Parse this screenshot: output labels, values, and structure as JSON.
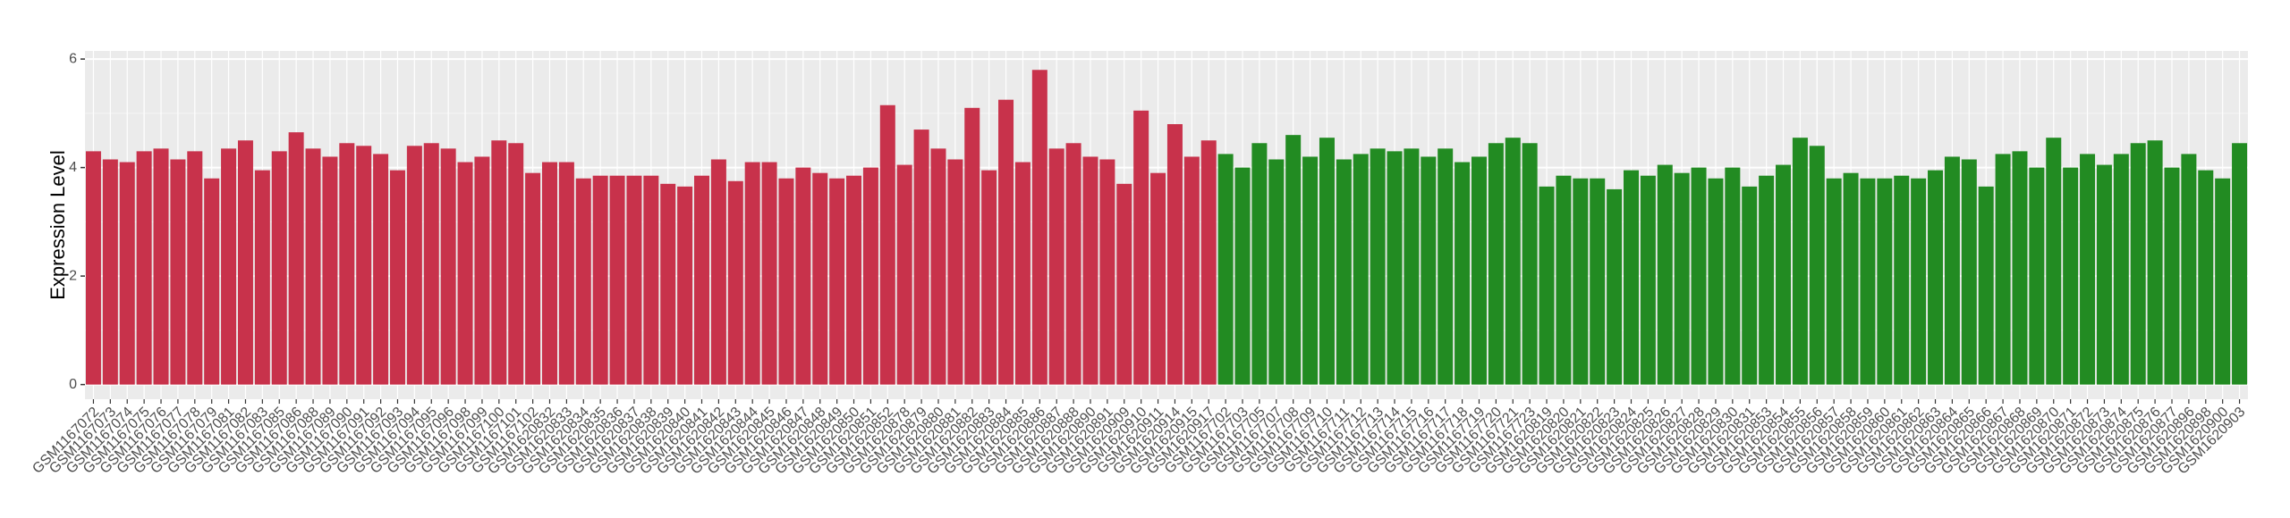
{
  "chart_data": {
    "type": "bar",
    "y_label": "Expression Level",
    "categories": [
      "GSM1167072",
      "GSM1167073",
      "GSM1167074",
      "GSM1167075",
      "GSM1167076",
      "GSM1167077",
      "GSM1167078",
      "GSM1167079",
      "GSM1167081",
      "GSM1167082",
      "GSM1167083",
      "GSM1167085",
      "GSM1167086",
      "GSM1167088",
      "GSM1167089",
      "GSM1167090",
      "GSM1167091",
      "GSM1167092",
      "GSM1167093",
      "GSM1167094",
      "GSM1167095",
      "GSM1167096",
      "GSM1167098",
      "GSM1167099",
      "GSM1167100",
      "GSM1167101",
      "GSM1167102",
      "GSM1620832",
      "GSM1620833",
      "GSM1620834",
      "GSM1620835",
      "GSM1620836",
      "GSM1620837",
      "GSM1620838",
      "GSM1620839",
      "GSM1620840",
      "GSM1620841",
      "GSM1620842",
      "GSM1620843",
      "GSM1620844",
      "GSM1620845",
      "GSM1620846",
      "GSM1620847",
      "GSM1620848",
      "GSM1620849",
      "GSM1620850",
      "GSM1620851",
      "GSM1620852",
      "GSM1620878",
      "GSM1620879",
      "GSM1620880",
      "GSM1620881",
      "GSM1620882",
      "GSM1620883",
      "GSM1620884",
      "GSM1620885",
      "GSM1620886",
      "GSM1620887",
      "GSM1620888",
      "GSM1620890",
      "GSM1620891",
      "GSM1620909",
      "GSM1620910",
      "GSM1620911",
      "GSM1620914",
      "GSM1620915",
      "GSM1620917",
      "GSM1167702",
      "GSM1167703",
      "GSM1167705",
      "GSM1167707",
      "GSM1167708",
      "GSM1167709",
      "GSM1167710",
      "GSM1167711",
      "GSM1167712",
      "GSM1167713",
      "GSM1167714",
      "GSM1167715",
      "GSM1167716",
      "GSM1167717",
      "GSM1167718",
      "GSM1167719",
      "GSM1167720",
      "GSM1167721",
      "GSM1167723",
      "GSM1620819",
      "GSM1620820",
      "GSM1620821",
      "GSM1620822",
      "GSM1620823",
      "GSM1620824",
      "GSM1620825",
      "GSM1620826",
      "GSM1620827",
      "GSM1620828",
      "GSM1620829",
      "GSM1620830",
      "GSM1620831",
      "GSM1620853",
      "GSM1620854",
      "GSM1620855",
      "GSM1620856",
      "GSM1620857",
      "GSM1620858",
      "GSM1620859",
      "GSM1620860",
      "GSM1620861",
      "GSM1620862",
      "GSM1620863",
      "GSM1620864",
      "GSM1620865",
      "GSM1620866",
      "GSM1620867",
      "GSM1620868",
      "GSM1620869",
      "GSM1620870",
      "GSM1620871",
      "GSM1620872",
      "GSM1620873",
      "GSM1620874",
      "GSM1620875",
      "GSM1620876",
      "GSM1620877",
      "GSM1620896",
      "GSM1620898",
      "GSM1620900",
      "GSM1620903"
    ],
    "values": [
      4.3,
      4.15,
      4.1,
      4.3,
      4.35,
      4.15,
      4.3,
      3.8,
      4.35,
      4.5,
      3.95,
      4.3,
      4.65,
      4.35,
      4.2,
      4.45,
      4.4,
      4.25,
      3.95,
      4.4,
      4.45,
      4.35,
      4.1,
      4.2,
      4.5,
      4.45,
      3.9,
      4.1,
      4.1,
      3.8,
      3.85,
      3.85,
      3.85,
      3.85,
      3.7,
      3.65,
      3.85,
      4.15,
      3.75,
      4.1,
      4.1,
      3.8,
      4.0,
      3.9,
      3.8,
      3.85,
      4.0,
      5.15,
      4.05,
      4.7,
      4.35,
      4.15,
      5.1,
      3.95,
      5.25,
      4.1,
      5.8,
      4.35,
      4.45,
      4.2,
      4.15,
      3.7,
      5.05,
      3.9,
      4.8,
      4.2,
      4.5,
      4.25,
      4.0,
      4.45,
      4.15,
      4.6,
      4.2,
      4.55,
      4.15,
      4.25,
      4.35,
      4.3,
      4.35,
      4.2,
      4.35,
      4.1,
      4.2,
      4.45,
      4.55,
      4.45,
      3.65,
      3.85,
      3.8,
      3.8,
      3.6,
      3.95,
      3.85,
      4.05,
      3.9,
      4.0,
      3.8,
      4.0,
      3.65,
      3.85,
      4.05,
      4.55,
      4.4,
      3.8,
      3.9,
      3.8,
      3.8,
      3.85,
      3.8,
      3.95,
      4.2,
      4.15,
      3.65,
      4.25,
      4.3,
      4.0,
      4.55,
      4.0,
      4.25,
      4.05,
      4.25,
      4.45,
      4.5,
      4.0,
      4.25,
      3.95,
      3.8,
      4.45
    ],
    "colors": [
      "#c8324b",
      "#c8324b",
      "#c8324b",
      "#c8324b",
      "#c8324b",
      "#c8324b",
      "#c8324b",
      "#c8324b",
      "#c8324b",
      "#c8324b",
      "#c8324b",
      "#c8324b",
      "#c8324b",
      "#c8324b",
      "#c8324b",
      "#c8324b",
      "#c8324b",
      "#c8324b",
      "#c8324b",
      "#c8324b",
      "#c8324b",
      "#c8324b",
      "#c8324b",
      "#c8324b",
      "#c8324b",
      "#c8324b",
      "#c8324b",
      "#c8324b",
      "#c8324b",
      "#c8324b",
      "#c8324b",
      "#c8324b",
      "#c8324b",
      "#c8324b",
      "#c8324b",
      "#c8324b",
      "#c8324b",
      "#c8324b",
      "#c8324b",
      "#c8324b",
      "#c8324b",
      "#c8324b",
      "#c8324b",
      "#c8324b",
      "#c8324b",
      "#c8324b",
      "#c8324b",
      "#c8324b",
      "#c8324b",
      "#c8324b",
      "#c8324b",
      "#c8324b",
      "#c8324b",
      "#c8324b",
      "#c8324b",
      "#c8324b",
      "#c8324b",
      "#c8324b",
      "#c8324b",
      "#c8324b",
      "#c8324b",
      "#c8324b",
      "#c8324b",
      "#c8324b",
      "#c8324b",
      "#c8324b",
      "#c8324b",
      "#228b22",
      "#228b22",
      "#228b22",
      "#228b22",
      "#228b22",
      "#228b22",
      "#228b22",
      "#228b22",
      "#228b22",
      "#228b22",
      "#228b22",
      "#228b22",
      "#228b22",
      "#228b22",
      "#228b22",
      "#228b22",
      "#228b22",
      "#228b22",
      "#228b22",
      "#228b22",
      "#228b22",
      "#228b22",
      "#228b22",
      "#228b22",
      "#228b22",
      "#228b22",
      "#228b22",
      "#228b22",
      "#228b22",
      "#228b22",
      "#228b22",
      "#228b22",
      "#228b22",
      "#228b22",
      "#228b22",
      "#228b22",
      "#228b22",
      "#228b22",
      "#228b22",
      "#228b22",
      "#228b22",
      "#228b22",
      "#228b22",
      "#228b22",
      "#228b22",
      "#228b22",
      "#228b22",
      "#228b22",
      "#228b22",
      "#228b22",
      "#228b22",
      "#228b22",
      "#228b22",
      "#228b22",
      "#228b22",
      "#228b22",
      "#228b22",
      "#228b22",
      "#228b22",
      "#228b22",
      "#228b22"
    ],
    "ylim": [
      -0.27,
      6.15
    ],
    "yticks": [
      0,
      2,
      4,
      6
    ],
    "grid": true
  }
}
